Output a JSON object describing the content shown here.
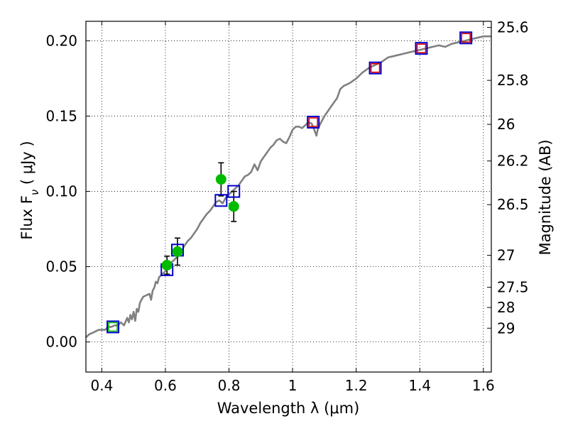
{
  "chart_data": {
    "type": "scatter",
    "xlabel": "Wavelength  λ (μm)",
    "ylabel": "Flux  F",
    "ylabel_sub": "ν",
    "ylabel_unit": " ( μJy )",
    "y2label": "Magnitude (AB)",
    "xlim": [
      0.35,
      1.625
    ],
    "ylim": [
      -0.02,
      0.213
    ],
    "x_ticks": [
      0.4,
      0.6,
      0.8,
      1.0,
      1.2,
      1.4,
      1.6
    ],
    "x_tick_labels": [
      "0.4",
      "0.6",
      "0.8",
      "1",
      "1.2",
      "1.4",
      "1.6"
    ],
    "y_ticks": [
      0.0,
      0.05,
      0.1,
      0.15,
      0.2
    ],
    "y_tick_labels": [
      "0.00",
      "0.05",
      "0.10",
      "0.15",
      "0.20"
    ],
    "mag_ticks": [
      25.6,
      25.8,
      26,
      26.2,
      26.5,
      27,
      27.5,
      28,
      29
    ],
    "mag_tick_labels": [
      "25.6",
      "25.8",
      "26",
      "26.2",
      "26.5",
      "27",
      "27.5",
      "28",
      "29"
    ],
    "grid": true,
    "model_spectrum": {
      "color": "#808080",
      "x": [
        0.35,
        0.36,
        0.37,
        0.38,
        0.39,
        0.4,
        0.41,
        0.42,
        0.43,
        0.44,
        0.45,
        0.46,
        0.47,
        0.48,
        0.485,
        0.49,
        0.495,
        0.5,
        0.505,
        0.51,
        0.515,
        0.52,
        0.53,
        0.54,
        0.55,
        0.555,
        0.56,
        0.565,
        0.57,
        0.575,
        0.58,
        0.59,
        0.6,
        0.61,
        0.62,
        0.63,
        0.64,
        0.65,
        0.66,
        0.67,
        0.68,
        0.69,
        0.7,
        0.71,
        0.72,
        0.73,
        0.74,
        0.75,
        0.76,
        0.77,
        0.78,
        0.79,
        0.8,
        0.81,
        0.82,
        0.83,
        0.84,
        0.85,
        0.86,
        0.87,
        0.88,
        0.89,
        0.9,
        0.91,
        0.92,
        0.93,
        0.94,
        0.95,
        0.96,
        0.97,
        0.98,
        0.99,
        1.0,
        1.01,
        1.02,
        1.03,
        1.04,
        1.05,
        1.06,
        1.07,
        1.075,
        1.08,
        1.09,
        1.1,
        1.12,
        1.14,
        1.15,
        1.16,
        1.18,
        1.2,
        1.22,
        1.24,
        1.26,
        1.28,
        1.3,
        1.32,
        1.34,
        1.36,
        1.38,
        1.4,
        1.42,
        1.44,
        1.46,
        1.48,
        1.5,
        1.52,
        1.54,
        1.56,
        1.58,
        1.6,
        1.625
      ],
      "y": [
        0.003,
        0.005,
        0.006,
        0.007,
        0.008,
        0.008,
        0.008,
        0.01,
        0.01,
        0.011,
        0.011,
        0.013,
        0.011,
        0.016,
        0.013,
        0.018,
        0.015,
        0.02,
        0.014,
        0.022,
        0.02,
        0.026,
        0.03,
        0.031,
        0.032,
        0.028,
        0.034,
        0.036,
        0.04,
        0.039,
        0.043,
        0.045,
        0.047,
        0.05,
        0.053,
        0.055,
        0.057,
        0.06,
        0.064,
        0.067,
        0.069,
        0.072,
        0.075,
        0.079,
        0.082,
        0.085,
        0.087,
        0.09,
        0.093,
        0.094,
        0.092,
        0.096,
        0.098,
        0.1,
        0.102,
        0.104,
        0.107,
        0.11,
        0.111,
        0.113,
        0.118,
        0.114,
        0.12,
        0.123,
        0.126,
        0.129,
        0.131,
        0.134,
        0.135,
        0.133,
        0.132,
        0.136,
        0.141,
        0.143,
        0.143,
        0.142,
        0.144,
        0.146,
        0.145,
        0.14,
        0.137,
        0.142,
        0.146,
        0.15,
        0.156,
        0.162,
        0.168,
        0.17,
        0.172,
        0.175,
        0.179,
        0.182,
        0.184,
        0.186,
        0.189,
        0.19,
        0.191,
        0.192,
        0.193,
        0.194,
        0.195,
        0.196,
        0.197,
        0.196,
        0.198,
        0.199,
        0.2,
        0.201,
        0.202,
        0.203,
        0.203
      ]
    },
    "model_photometry_squares": {
      "color": "#0000cc",
      "x": [
        0.435,
        0.605,
        0.638,
        0.775,
        0.815,
        1.065,
        1.26,
        1.405,
        1.545
      ],
      "y": [
        0.01,
        0.048,
        0.061,
        0.094,
        0.1,
        0.146,
        0.182,
        0.195,
        0.202
      ]
    },
    "observed_points": {
      "color": "#00bb00",
      "x": [
        0.605,
        0.638,
        0.775,
        0.815
      ],
      "y": [
        0.051,
        0.06,
        0.108,
        0.09
      ],
      "err": [
        0.006,
        0.009,
        0.011,
        0.01
      ]
    },
    "small_squares": {
      "x": [
        0.435,
        1.065,
        1.26,
        1.405,
        1.545
      ],
      "y": [
        0.01,
        0.146,
        0.182,
        0.195,
        0.202
      ],
      "colors": [
        "#00bb00",
        "#dd0000",
        "#dd0000",
        "#dd0000",
        "#dd0000"
      ]
    }
  }
}
